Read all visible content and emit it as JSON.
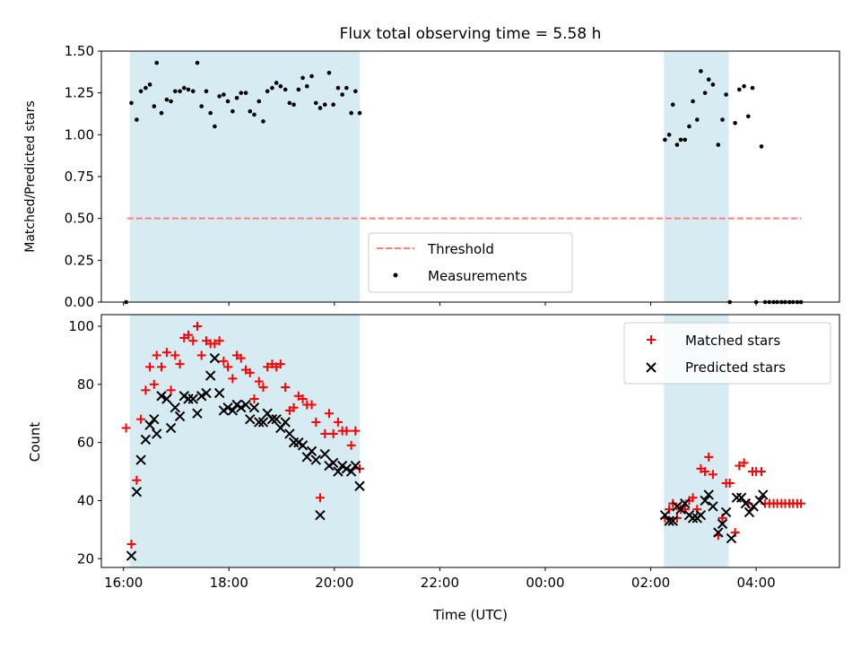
{
  "colors": {
    "shade": "#add8e6",
    "threshold": "#ff7f7f",
    "matched": "#ff0000",
    "predicted": "#000000",
    "measurement": "#000000"
  },
  "chart_data": [
    {
      "type": "scatter",
      "title": "Flux total observing time = 5.58 h",
      "ylabel": "Matched/Predicted stars",
      "xlabel": "",
      "xlim": [
        15.58,
        29.58
      ],
      "ylim": [
        0,
        1.5
      ],
      "yticks": [
        "0.00",
        "0.25",
        "0.50",
        "0.75",
        "1.00",
        "1.25",
        "1.50"
      ],
      "shaded_ranges": [
        [
          16.12,
          20.48
        ],
        [
          26.25,
          27.48
        ]
      ],
      "threshold": {
        "label": "Threshold",
        "value": 0.5,
        "x_range": [
          16.07,
          28.85
        ]
      },
      "legend": {
        "placement": "lower-center",
        "entries": [
          "Threshold",
          "Measurements"
        ]
      },
      "series": [
        {
          "name": "Measurements",
          "points": [
            [
              16.05,
              0.0
            ],
            [
              16.15,
              1.19
            ],
            [
              16.25,
              1.09
            ],
            [
              16.33,
              1.26
            ],
            [
              16.42,
              1.28
            ],
            [
              16.5,
              1.3
            ],
            [
              16.58,
              1.17
            ],
            [
              16.63,
              1.43
            ],
            [
              16.72,
              1.13
            ],
            [
              16.82,
              1.21
            ],
            [
              16.9,
              1.2
            ],
            [
              16.98,
              1.26
            ],
            [
              17.07,
              1.26
            ],
            [
              17.15,
              1.28
            ],
            [
              17.23,
              1.27
            ],
            [
              17.32,
              1.26
            ],
            [
              17.4,
              1.43
            ],
            [
              17.48,
              1.17
            ],
            [
              17.57,
              1.26
            ],
            [
              17.65,
              1.13
            ],
            [
              17.73,
              1.05
            ],
            [
              17.82,
              1.23
            ],
            [
              17.9,
              1.24
            ],
            [
              17.98,
              1.2
            ],
            [
              18.07,
              1.14
            ],
            [
              18.15,
              1.22
            ],
            [
              18.23,
              1.25
            ],
            [
              18.32,
              1.25
            ],
            [
              18.4,
              1.14
            ],
            [
              18.48,
              1.12
            ],
            [
              18.57,
              1.2
            ],
            [
              18.65,
              1.08
            ],
            [
              18.73,
              1.26
            ],
            [
              18.82,
              1.28
            ],
            [
              18.9,
              1.31
            ],
            [
              18.98,
              1.29
            ],
            [
              19.07,
              1.27
            ],
            [
              19.15,
              1.19
            ],
            [
              19.23,
              1.18
            ],
            [
              19.32,
              1.27
            ],
            [
              19.4,
              1.34
            ],
            [
              19.48,
              1.29
            ],
            [
              19.57,
              1.35
            ],
            [
              19.65,
              1.19
            ],
            [
              19.73,
              1.16
            ],
            [
              19.82,
              1.18
            ],
            [
              19.9,
              1.37
            ],
            [
              19.98,
              1.18
            ],
            [
              20.07,
              1.28
            ],
            [
              20.15,
              1.24
            ],
            [
              20.23,
              1.28
            ],
            [
              20.32,
              1.13
            ],
            [
              20.4,
              1.26
            ],
            [
              20.48,
              1.13
            ],
            [
              26.27,
              0.97
            ],
            [
              26.35,
              1.0
            ],
            [
              26.42,
              1.18
            ],
            [
              26.5,
              0.94
            ],
            [
              26.57,
              0.97
            ],
            [
              26.65,
              0.97
            ],
            [
              26.73,
              1.05
            ],
            [
              26.8,
              1.2
            ],
            [
              26.88,
              1.09
            ],
            [
              26.95,
              1.38
            ],
            [
              27.03,
              1.25
            ],
            [
              27.1,
              1.33
            ],
            [
              27.18,
              1.3
            ],
            [
              27.28,
              0.94
            ],
            [
              27.36,
              1.09
            ],
            [
              27.43,
              1.24
            ],
            [
              27.5,
              0.0
            ],
            [
              27.6,
              1.07
            ],
            [
              27.68,
              1.27
            ],
            [
              27.77,
              1.29
            ],
            [
              27.85,
              1.11
            ],
            [
              27.93,
              1.28
            ],
            [
              28.0,
              0.0
            ],
            [
              28.1,
              0.93
            ],
            [
              28.17,
              0.0
            ],
            [
              28.25,
              0.0
            ],
            [
              28.33,
              0.0
            ],
            [
              28.4,
              0.0
            ],
            [
              28.48,
              0.0
            ],
            [
              28.55,
              0.0
            ],
            [
              28.63,
              0.0
            ],
            [
              28.7,
              0.0
            ],
            [
              28.78,
              0.0
            ],
            [
              28.85,
              0.0
            ]
          ]
        }
      ]
    },
    {
      "type": "scatter",
      "title": "",
      "ylabel": "Count",
      "xlabel": "Time (UTC)",
      "xlim": [
        15.58,
        29.58
      ],
      "ylim": [
        17,
        104
      ],
      "yticks": [
        "20",
        "40",
        "60",
        "80",
        "100"
      ],
      "xticks": [
        {
          "value": 16,
          "label": "16:00"
        },
        {
          "value": 18,
          "label": "18:00"
        },
        {
          "value": 20,
          "label": "20:00"
        },
        {
          "value": 22,
          "label": "22:00"
        },
        {
          "value": 24,
          "label": "00:00"
        },
        {
          "value": 26,
          "label": "02:00"
        },
        {
          "value": 28,
          "label": "04:00"
        }
      ],
      "shaded_ranges": [
        [
          16.12,
          20.48
        ],
        [
          26.25,
          27.48
        ]
      ],
      "legend": {
        "placement": "upper-right",
        "entries": [
          "Matched stars",
          "Predicted stars"
        ]
      },
      "series": [
        {
          "name": "Matched stars",
          "marker": "plus",
          "points": [
            [
              16.05,
              65
            ],
            [
              16.15,
              25
            ],
            [
              16.25,
              47
            ],
            [
              16.33,
              68
            ],
            [
              16.42,
              78
            ],
            [
              16.5,
              86
            ],
            [
              16.58,
              80
            ],
            [
              16.63,
              90
            ],
            [
              16.72,
              86
            ],
            [
              16.82,
              91
            ],
            [
              16.9,
              78
            ],
            [
              16.98,
              90
            ],
            [
              17.07,
              87
            ],
            [
              17.15,
              96
            ],
            [
              17.23,
              97
            ],
            [
              17.32,
              95
            ],
            [
              17.4,
              100
            ],
            [
              17.48,
              90
            ],
            [
              17.57,
              95
            ],
            [
              17.65,
              94
            ],
            [
              17.73,
              94
            ],
            [
              17.82,
              95
            ],
            [
              17.9,
              88
            ],
            [
              17.98,
              86
            ],
            [
              18.07,
              82
            ],
            [
              18.15,
              90
            ],
            [
              18.23,
              89
            ],
            [
              18.32,
              85
            ],
            [
              18.4,
              84
            ],
            [
              18.48,
              75
            ],
            [
              18.57,
              81
            ],
            [
              18.65,
              79
            ],
            [
              18.73,
              86
            ],
            [
              18.82,
              87
            ],
            [
              18.9,
              86
            ],
            [
              18.98,
              87
            ],
            [
              19.07,
              79
            ],
            [
              19.15,
              71
            ],
            [
              19.23,
              72
            ],
            [
              19.32,
              76
            ],
            [
              19.4,
              75
            ],
            [
              19.48,
              73
            ],
            [
              19.57,
              73
            ],
            [
              19.65,
              67
            ],
            [
              19.73,
              41
            ],
            [
              19.82,
              63
            ],
            [
              19.9,
              70
            ],
            [
              19.98,
              63
            ],
            [
              20.07,
              67
            ],
            [
              20.15,
              64
            ],
            [
              20.23,
              64
            ],
            [
              20.32,
              59
            ],
            [
              20.4,
              64
            ],
            [
              20.48,
              51
            ],
            [
              26.27,
              34
            ],
            [
              26.35,
              37
            ],
            [
              26.42,
              39
            ],
            [
              26.5,
              34
            ],
            [
              26.57,
              37
            ],
            [
              26.65,
              37
            ],
            [
              26.73,
              40
            ],
            [
              26.8,
              41
            ],
            [
              26.88,
              37
            ],
            [
              26.95,
              51
            ],
            [
              27.03,
              50
            ],
            [
              27.1,
              55
            ],
            [
              27.18,
              49
            ],
            [
              27.28,
              28
            ],
            [
              27.36,
              34
            ],
            [
              27.43,
              46
            ],
            [
              27.5,
              46
            ],
            [
              27.6,
              29
            ],
            [
              27.68,
              52
            ],
            [
              27.77,
              53
            ],
            [
              27.85,
              39
            ],
            [
              27.93,
              50
            ],
            [
              28.0,
              50
            ],
            [
              28.1,
              50
            ],
            [
              28.17,
              39
            ],
            [
              28.25,
              39
            ],
            [
              28.33,
              39
            ],
            [
              28.4,
              39
            ],
            [
              28.48,
              39
            ],
            [
              28.55,
              39
            ],
            [
              28.63,
              39
            ],
            [
              28.7,
              39
            ],
            [
              28.78,
              39
            ],
            [
              28.85,
              39
            ]
          ]
        },
        {
          "name": "Predicted stars",
          "marker": "x",
          "points": [
            [
              16.15,
              21
            ],
            [
              16.25,
              43
            ],
            [
              16.33,
              54
            ],
            [
              16.42,
              61
            ],
            [
              16.5,
              66
            ],
            [
              16.58,
              68
            ],
            [
              16.63,
              63
            ],
            [
              16.72,
              76
            ],
            [
              16.82,
              75
            ],
            [
              16.9,
              65
            ],
            [
              16.98,
              72
            ],
            [
              17.07,
              69
            ],
            [
              17.15,
              76
            ],
            [
              17.23,
              75
            ],
            [
              17.32,
              75
            ],
            [
              17.4,
              70
            ],
            [
              17.48,
              76
            ],
            [
              17.57,
              77
            ],
            [
              17.65,
              83
            ],
            [
              17.73,
              89
            ],
            [
              17.82,
              77
            ],
            [
              17.9,
              71
            ],
            [
              17.98,
              72
            ],
            [
              18.07,
              71
            ],
            [
              18.15,
              73
            ],
            [
              18.23,
              72
            ],
            [
              18.32,
              73
            ],
            [
              18.4,
              68
            ],
            [
              18.48,
              72
            ],
            [
              18.57,
              67
            ],
            [
              18.65,
              67
            ],
            [
              18.73,
              70
            ],
            [
              18.82,
              68
            ],
            [
              18.9,
              68
            ],
            [
              18.98,
              65
            ],
            [
              19.07,
              67
            ],
            [
              19.15,
              63
            ],
            [
              19.23,
              60
            ],
            [
              19.32,
              60
            ],
            [
              19.4,
              59
            ],
            [
              19.48,
              55
            ],
            [
              19.57,
              57
            ],
            [
              19.65,
              54
            ],
            [
              19.73,
              35
            ],
            [
              19.82,
              56
            ],
            [
              19.9,
              52
            ],
            [
              19.98,
              53
            ],
            [
              20.07,
              50
            ],
            [
              20.15,
              52
            ],
            [
              20.23,
              51
            ],
            [
              20.32,
              50
            ],
            [
              20.4,
              52
            ],
            [
              20.48,
              45
            ],
            [
              26.27,
              35
            ],
            [
              26.35,
              33
            ],
            [
              26.42,
              33
            ],
            [
              26.5,
              38
            ],
            [
              26.57,
              37
            ],
            [
              26.65,
              39
            ],
            [
              26.73,
              35
            ],
            [
              26.8,
              34
            ],
            [
              26.88,
              34
            ],
            [
              26.95,
              35
            ],
            [
              27.03,
              40
            ],
            [
              27.1,
              42
            ],
            [
              27.18,
              38
            ],
            [
              27.28,
              29
            ],
            [
              27.36,
              32
            ],
            [
              27.43,
              36
            ],
            [
              27.53,
              27
            ],
            [
              27.63,
              41
            ],
            [
              27.72,
              41
            ],
            [
              27.8,
              39
            ],
            [
              27.87,
              36
            ],
            [
              27.95,
              38
            ],
            [
              28.07,
              40
            ],
            [
              28.13,
              42
            ]
          ]
        }
      ]
    }
  ]
}
